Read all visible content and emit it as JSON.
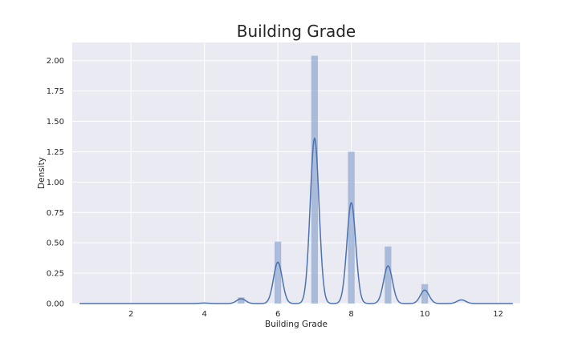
{
  "chart_data": {
    "type": "bar",
    "title": "Building Grade",
    "xlabel": "Building Grade",
    "ylabel": "Density",
    "xlim": [
      0.4,
      12.6
    ],
    "ylim": [
      0,
      2.15
    ],
    "x_ticks": [
      2,
      4,
      6,
      8,
      10,
      12
    ],
    "y_ticks": [
      0.0,
      0.25,
      0.5,
      0.75,
      1.0,
      1.25,
      1.5,
      1.75,
      2.0
    ],
    "grid": true,
    "histogram": {
      "bins": [
        {
          "x": 5,
          "density": 0.05
        },
        {
          "x": 6,
          "density": 0.51
        },
        {
          "x": 7,
          "density": 2.04
        },
        {
          "x": 8,
          "density": 1.25
        },
        {
          "x": 9,
          "density": 0.47
        },
        {
          "x": 10,
          "density": 0.16
        }
      ],
      "bar_width": 0.18,
      "color": "#8fa7cf"
    },
    "kde": {
      "color": "#4c72b0",
      "range": [
        0.6,
        12.4
      ],
      "peaks": [
        {
          "x": 4.0,
          "height": 0.004
        },
        {
          "x": 5.0,
          "height": 0.04
        },
        {
          "x": 6.0,
          "height": 0.34
        },
        {
          "x": 7.0,
          "height": 1.36
        },
        {
          "x": 8.0,
          "height": 0.83
        },
        {
          "x": 9.0,
          "height": 0.31
        },
        {
          "x": 10.0,
          "height": 0.11
        },
        {
          "x": 11.0,
          "height": 0.03
        }
      ],
      "peak_width": 0.12
    },
    "background": "#eaeaf2",
    "grid_color": "#ffffff"
  }
}
